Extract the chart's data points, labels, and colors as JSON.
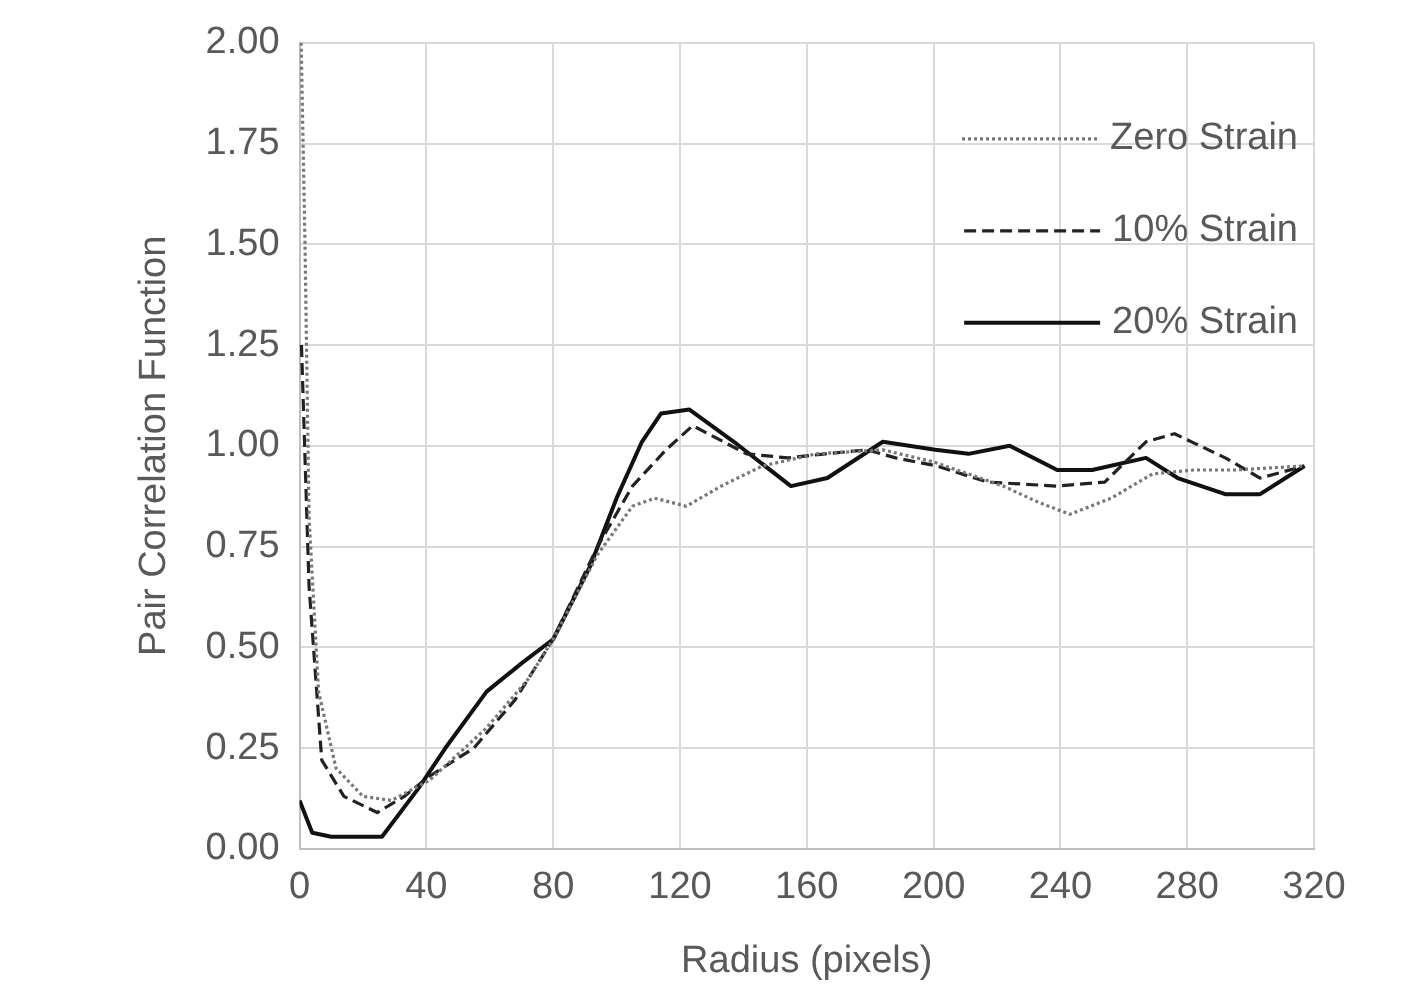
{
  "chart_data": {
    "type": "line",
    "xlabel": "Radius (pixels)",
    "ylabel": "Pair Correlation Function",
    "xlim": [
      0,
      320
    ],
    "xticks": [
      0,
      40,
      80,
      120,
      160,
      200,
      240,
      280,
      320
    ],
    "ylim": [
      0,
      2
    ],
    "yticks": [
      {
        "value": 0,
        "label": "0.00"
      },
      {
        "value": 0.25,
        "label": "0.25"
      },
      {
        "value": 0.5,
        "label": "0.50"
      },
      {
        "value": 0.75,
        "label": "0.75"
      },
      {
        "value": 1,
        "label": "1.00"
      },
      {
        "value": 1.25,
        "label": "1.25"
      },
      {
        "value": 1.5,
        "label": "1.50"
      },
      {
        "value": 1.75,
        "label": "1.75"
      },
      {
        "value": 2,
        "label": "2.00"
      }
    ],
    "grid": true,
    "legend": "top right",
    "marker": "none",
    "series": [
      {
        "name": "Zero Strain",
        "color": "#777777",
        "line_style": "dotted",
        "x": [
          0.5,
          1.7,
          3,
          6,
          11.5,
          20,
          29,
          41,
          59,
          72,
          80,
          94,
          105,
          112,
          122,
          133,
          146,
          163,
          184,
          200,
          222,
          233,
          243,
          256,
          269,
          282,
          295,
          317
        ],
        "values": [
          2.0,
          1.51,
          0.82,
          0.39,
          0.2,
          0.13,
          0.12,
          0.17,
          0.3,
          0.42,
          0.52,
          0.73,
          0.85,
          0.87,
          0.85,
          0.9,
          0.95,
          0.98,
          0.99,
          0.96,
          0.9,
          0.86,
          0.83,
          0.87,
          0.93,
          0.94,
          0.94,
          0.95
        ]
      },
      {
        "name": "10% Strain",
        "color": "#222222",
        "line_style": "dashed",
        "x": [
          0.6,
          3,
          7,
          14,
          24.5,
          33,
          41,
          55,
          68,
          80,
          94,
          105,
          115.6,
          124,
          141,
          154,
          166,
          179,
          188,
          201,
          217,
          239,
          254,
          267,
          276,
          292,
          303,
          317
        ],
        "values": [
          1.25,
          0.65,
          0.22,
          0.13,
          0.09,
          0.13,
          0.18,
          0.25,
          0.37,
          0.52,
          0.75,
          0.9,
          0.99,
          1.05,
          0.98,
          0.97,
          0.98,
          0.99,
          0.97,
          0.95,
          0.91,
          0.9,
          0.91,
          1.01,
          1.03,
          0.97,
          0.92,
          0.95
        ]
      },
      {
        "name": "20% Strain",
        "color": "#111111",
        "line_style": "solid",
        "x": [
          0,
          4,
          10,
          26,
          37.5,
          46,
          59,
          70,
          80,
          91.6,
          100,
          108,
          114,
          123,
          137,
          155,
          166.5,
          184,
          200.5,
          211,
          224,
          239,
          250,
          267,
          277,
          292,
          303,
          317
        ],
        "values": [
          0.12,
          0.04,
          0.03,
          0.03,
          0.15,
          0.25,
          0.39,
          0.46,
          0.52,
          0.7,
          0.87,
          1.01,
          1.08,
          1.09,
          1.01,
          0.9,
          0.92,
          1.01,
          0.99,
          0.98,
          1.0,
          0.94,
          0.94,
          0.97,
          0.92,
          0.88,
          0.88,
          0.95
        ]
      }
    ]
  }
}
